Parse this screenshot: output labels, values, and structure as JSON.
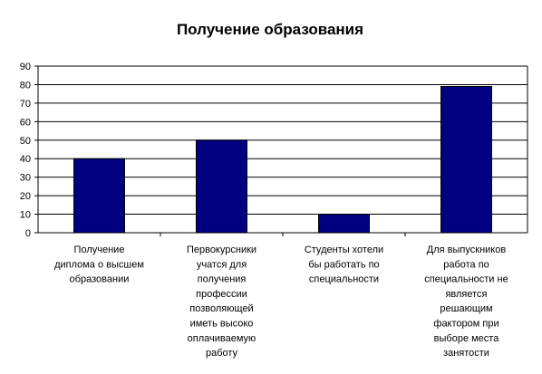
{
  "chart_data": {
    "type": "bar",
    "title": "Получение образования",
    "categories": [
      "Получение диплома о высшем образовании",
      "Первокурсники учатся для получения профессии позволяющей иметь высоко оплачиваемую работу",
      "Студенты хотели бы работать по специальности",
      "Для выпускников работа по специальности не является решающим фактором при выборе места занятости"
    ],
    "category_lines": [
      [
        "Получение",
        "диплома о высшем",
        "образовании"
      ],
      [
        "Первокурсники",
        "учатся для",
        "получения",
        "профессии",
        "позволяющей",
        "иметь высоко",
        "оплачиваемую",
        "работу"
      ],
      [
        "Студенты хотели",
        "бы работать по",
        "специальности"
      ],
      [
        "Для выпускников",
        "работа по",
        "специальности не",
        "является",
        "решающим",
        "фактором при",
        "выборе места",
        "занятости"
      ]
    ],
    "values": [
      40,
      50,
      10,
      79
    ],
    "yticks": [
      "0",
      "10",
      "20",
      "30",
      "40",
      "50",
      "60",
      "70",
      "80",
      "90"
    ],
    "ylim": [
      0,
      90
    ],
    "grid": true,
    "legend": "none",
    "bar_color": "#000080"
  }
}
